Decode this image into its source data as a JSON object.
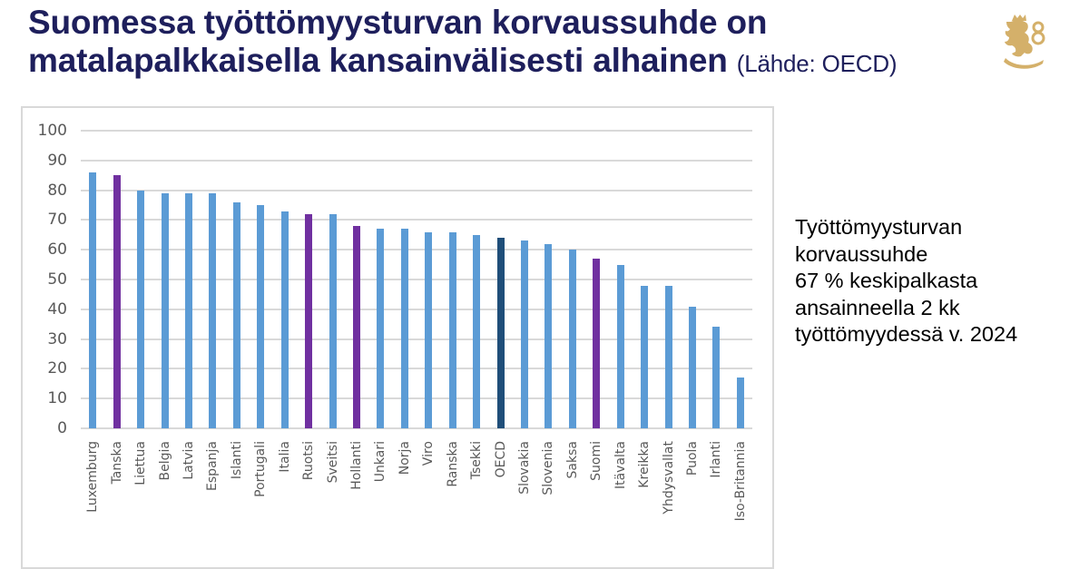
{
  "header": {
    "title_line1": "Suomessa työttömyysturvan korvaussuhde on",
    "title_line2": "matalapalkkaisella kansainvälisesti alhainen",
    "source": "(Lähde: OECD)",
    "logo_icon": "finnish-lion-coat-of-arms"
  },
  "note": {
    "line1": "Työttömyysturvan",
    "line2": "korvaussuhde",
    "line3": "67 % keskipalkasta",
    "line4": "ansainneella 2 kk",
    "line5": "työttömyydessä v. 2024"
  },
  "colors": {
    "default_bar": "#5b9bd5",
    "nordic_bar": "#7030a0",
    "oecd_bar": "#1f4e79",
    "title": "#1e1f5c",
    "logo": "#d4b06a"
  },
  "chart_data": {
    "type": "bar",
    "title": "Suomessa työttömyysturvan korvaussuhde on matalapalkkaisella kansainvälisesti alhainen (Lähde: OECD)",
    "xlabel": "",
    "ylabel": "",
    "ylim": [
      0,
      100
    ],
    "yticks": [
      0,
      10,
      20,
      30,
      40,
      50,
      60,
      70,
      80,
      90,
      100
    ],
    "grid": true,
    "legend": null,
    "categories": [
      "Luxemburg",
      "Tanska",
      "Liettua",
      "Belgia",
      "Latvia",
      "Espanja",
      "Islanti",
      "Portugali",
      "Italia",
      "Ruotsi",
      "Sveitsi",
      "Hollanti",
      "Unkari",
      "Norja",
      "Viro",
      "Ranska",
      "Tsekki",
      "OECD",
      "Slovakia",
      "Slovenia",
      "Saksa",
      "Suomi",
      "Itävalta",
      "Kreikka",
      "Yhdysvallat",
      "Puola",
      "Irlanti",
      "Iso-Britannia"
    ],
    "values": [
      86,
      85,
      80,
      79,
      79,
      79,
      76,
      75,
      73,
      72,
      72,
      68,
      67,
      67,
      66,
      66,
      65,
      64,
      63,
      62,
      60,
      57,
      55,
      48,
      48,
      41,
      34,
      17
    ],
    "highlight": [
      "default",
      "nordic",
      "default",
      "default",
      "default",
      "default",
      "default",
      "default",
      "default",
      "nordic",
      "default",
      "nordic",
      "default",
      "default",
      "default",
      "default",
      "default",
      "oecd",
      "default",
      "default",
      "default",
      "nordic",
      "default",
      "default",
      "default",
      "default",
      "default",
      "default"
    ],
    "annotation": "Työttömyysturvan korvaussuhde 67 % keskipalkasta ansainneella 2 kk työttömyydessä v. 2024"
  }
}
